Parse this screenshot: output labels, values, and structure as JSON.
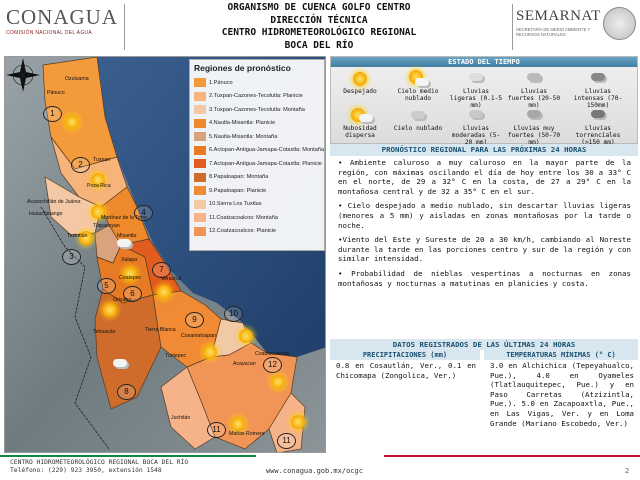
{
  "header": {
    "org_logo": {
      "name": "CONAGUA",
      "subtitle": "COMISIÓN NACIONAL DEL AGUA"
    },
    "title_lines": [
      "ORGANISMO DE CUENCA GOLFO CENTRO",
      "DIRECCIÓN TÉCNICA",
      "CENTRO HIDROMETEOROLÓGICO REGIONAL",
      "BOCA DEL RÍO"
    ],
    "ministry_logo": {
      "name": "SEMARNAT",
      "subtitle": "SECRETARÍA DE MEDIO AMBIENTE Y RECURSOS NATURALES"
    },
    "seal_icon": "national-seal-icon"
  },
  "map": {
    "legend_title": "Regiones de pronóstico",
    "legend": [
      {
        "label": "1.Pánuco",
        "color": "#f39a3c"
      },
      {
        "label": "2.Tuxpan-Cazones-Tecolutla: Planicie",
        "color": "#f6b37a"
      },
      {
        "label": "3.Tuxpan-Cazones-Tecolutla: Montaña",
        "color": "#f4c8a4"
      },
      {
        "label": "4.Nautla-Misantla: Planicie",
        "color": "#ee8a2c"
      },
      {
        "label": "5.Nautla-Misantla: Montaña",
        "color": "#d9a37e"
      },
      {
        "label": "6.Actopan-Antigua-Jamapa-Cotaxtla: Montaña",
        "color": "#e77a25"
      },
      {
        "label": "7.Actopan-Antigua-Jamapa-Cotaxtla: Planicie",
        "color": "#e25b1f"
      },
      {
        "label": "8.Papaloapan: Montaña",
        "color": "#cf6c2b"
      },
      {
        "label": "9.Papaloapan: Planicie",
        "color": "#f08a34"
      },
      {
        "label": "10.Sierra Los Tuxtlas",
        "color": "#f1c9a5"
      },
      {
        "label": "11.Coatzacoalcos: Montaña",
        "color": "#f6b389"
      },
      {
        "label": "12.Coatzacoalcos: Planicie",
        "color": "#f19556"
      }
    ],
    "region_numbers": [
      "1",
      "2",
      "3",
      "4",
      "5",
      "6",
      "7",
      "8",
      "9",
      "10",
      "11",
      "12",
      "11"
    ],
    "cities": [
      "Ozuluama",
      "Pánuco",
      "Tuxpan",
      "Tlapacoyan",
      "Poza Rica",
      "Acaxochitlán de Juárez",
      "Huauchinango",
      "Teziutlán",
      "Martínez de la Torre",
      "Misantla",
      "Xalapa",
      "Coatepec",
      "Veracruz",
      "Orizaba",
      "Tierra Blanca",
      "Cosamaloapan",
      "Coatzacoalcos",
      "Acayucan",
      "Tehuacán",
      "Tuxtepec",
      "Matías Romero",
      "Juchitán"
    ],
    "compass_icon": "compass-rose-icon"
  },
  "weather_state": {
    "heading": "ESTADO DEL TIEMPO",
    "items": [
      {
        "label": "Despejado",
        "icon": "sun-icon"
      },
      {
        "label": "Cielo medio nublado",
        "icon": "sun-cloud-icon"
      },
      {
        "label": "Lluvias ligeras (0.1-5 mm)",
        "icon": "light-rain-icon"
      },
      {
        "label": "Lluvias fuertes (20-50 mm)",
        "icon": "heavy-rain-icon"
      },
      {
        "label": "Lluvias intensas (70-150mm)",
        "icon": "storm-icon"
      },
      {
        "label": "Nubosidad dispersa",
        "icon": "scattered-clouds-icon"
      },
      {
        "label": "Cielo nublado",
        "icon": "cloudy-icon"
      },
      {
        "label": "Lluvias moderadas (5-20 mm)",
        "icon": "moderate-rain-icon"
      },
      {
        "label": "Lluvias muy fuertes (50-70 mm)",
        "icon": "very-heavy-rain-icon"
      },
      {
        "label": "Lluvias torrenciales (>150 mm)",
        "icon": "torrential-rain-icon"
      }
    ]
  },
  "forecast": {
    "heading": "PRONÓSTICO REGIONAL PARA LAS PRÓXIMAS 24 HORAS",
    "paragraphs": [
      "• Ambiente caluroso a muy caluroso en la mayor parte de la región, con máximas oscilando el día de hoy entre los 30 a 33° C en el norte, de 29 a 32° C en la costa, de 27 a 29° C en la montañosa central y de 32 a 35° C en el sur.",
      "• Cielo despejado a medio nublado, sin descartar lluvias ligeras (menores a 5 mm) y aisladas en zonas montañosas por la tarde o noche.",
      "•Viento del Este y Sureste de 20 a 30 km/h, cambiando al Noreste durante la tarde en las porciones centro y sur de la región y con similar intensidad.",
      "• Probabilidad de nieblas vespertinas a nocturnas en zonas montañosas y nocturnas a matutinas en planicies y costa."
    ]
  },
  "recent": {
    "heading": "DATOS REGISTRADOS DE LAS ÚLTIMAS 24 HORAS",
    "precip_heading": "PRECIPITACIONES (mm)",
    "temp_heading": "TEMPERATURAS MÍNIMAS (° C)",
    "precip_text": "0.8 en Cosautlán, Ver., 0.1 en Chicomapa (Zongolica, Ver.)",
    "temp_text": "3.0 en Alchichica (Tepeyahualco, Pue.), 4.0 en Oyameles (Tlatlauquitepec, Pue.) y en Paso Carretas (Atzizintla, Pue.). 5.0 en Zacapoaxtla, Pue., en Las Vigas, Ver. y en Loma Grande (Mariano Escobedo, Ver.)"
  },
  "footer": {
    "center_name": "CENTRO HIDROMETEOROLÓGICO REGIONAL BOCA DEL RÍO",
    "phone": "Teléfono: (229) 923 3950, extensión 1548",
    "url": "www.conagua.gob.mx/ocgc",
    "page": "2"
  }
}
